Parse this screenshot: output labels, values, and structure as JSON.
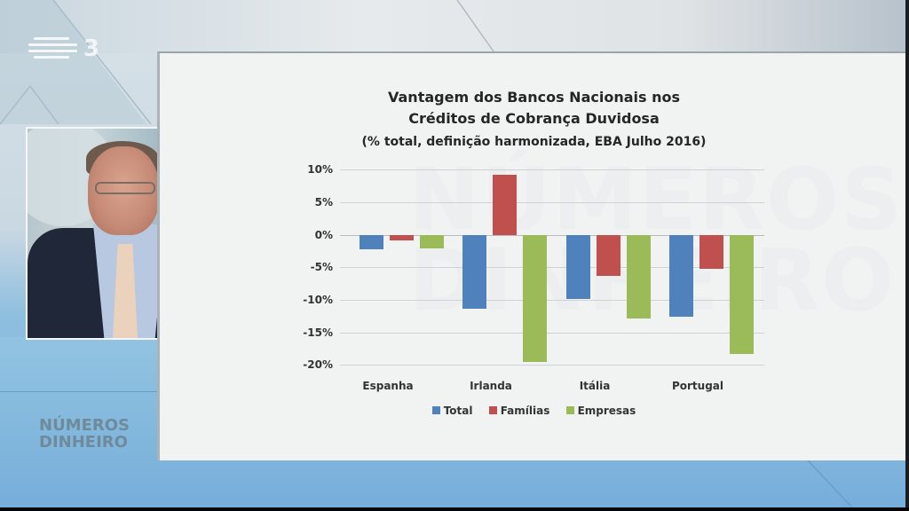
{
  "broadcast": {
    "channel_logo": {
      "icon": "rtp-bars-icon",
      "number": "3"
    },
    "show_logo": {
      "line1": "NÚMEROS",
      "line2": "DINHEIRO"
    }
  },
  "slide": {
    "title_line1": "Vantagem dos Bancos Nacionais nos",
    "title_line2": "Créditos de Cobrança Duvidosa",
    "subtitle": "(% total, definição harmonizada, EBA Julho 2016)"
  },
  "colors": {
    "total": "#4f81bd",
    "familias": "#c0504d",
    "empresas": "#9bbb59"
  },
  "chart_data": {
    "type": "bar",
    "title": "Vantagem dos Bancos Nacionais nos Créditos de Cobrança Duvidosa",
    "subtitle": "(% total, definição harmonizada, EBA Julho 2016)",
    "xlabel": "",
    "ylabel": "",
    "categories": [
      "Espanha",
      "Irlanda",
      "Itália",
      "Portugal"
    ],
    "series": [
      {
        "name": "Total",
        "color": "#4f81bd",
        "values": [
          -2.2,
          -11.3,
          -9.8,
          -12.5
        ]
      },
      {
        "name": "Famílias",
        "color": "#c0504d",
        "values": [
          -0.8,
          9.2,
          -6.3,
          -5.2
        ]
      },
      {
        "name": "Empresas",
        "color": "#9bbb59",
        "values": [
          -2.0,
          -19.5,
          -12.8,
          -18.3
        ]
      }
    ],
    "yticks": [
      "10%",
      "5%",
      "0%",
      "-5%",
      "-10%",
      "-15%",
      "-20%"
    ],
    "ylim": [
      -20,
      10
    ],
    "grid": true,
    "legend_position": "bottom"
  },
  "legend": [
    {
      "label": "Total"
    },
    {
      "label": "Famílias"
    },
    {
      "label": "Empresas"
    }
  ]
}
